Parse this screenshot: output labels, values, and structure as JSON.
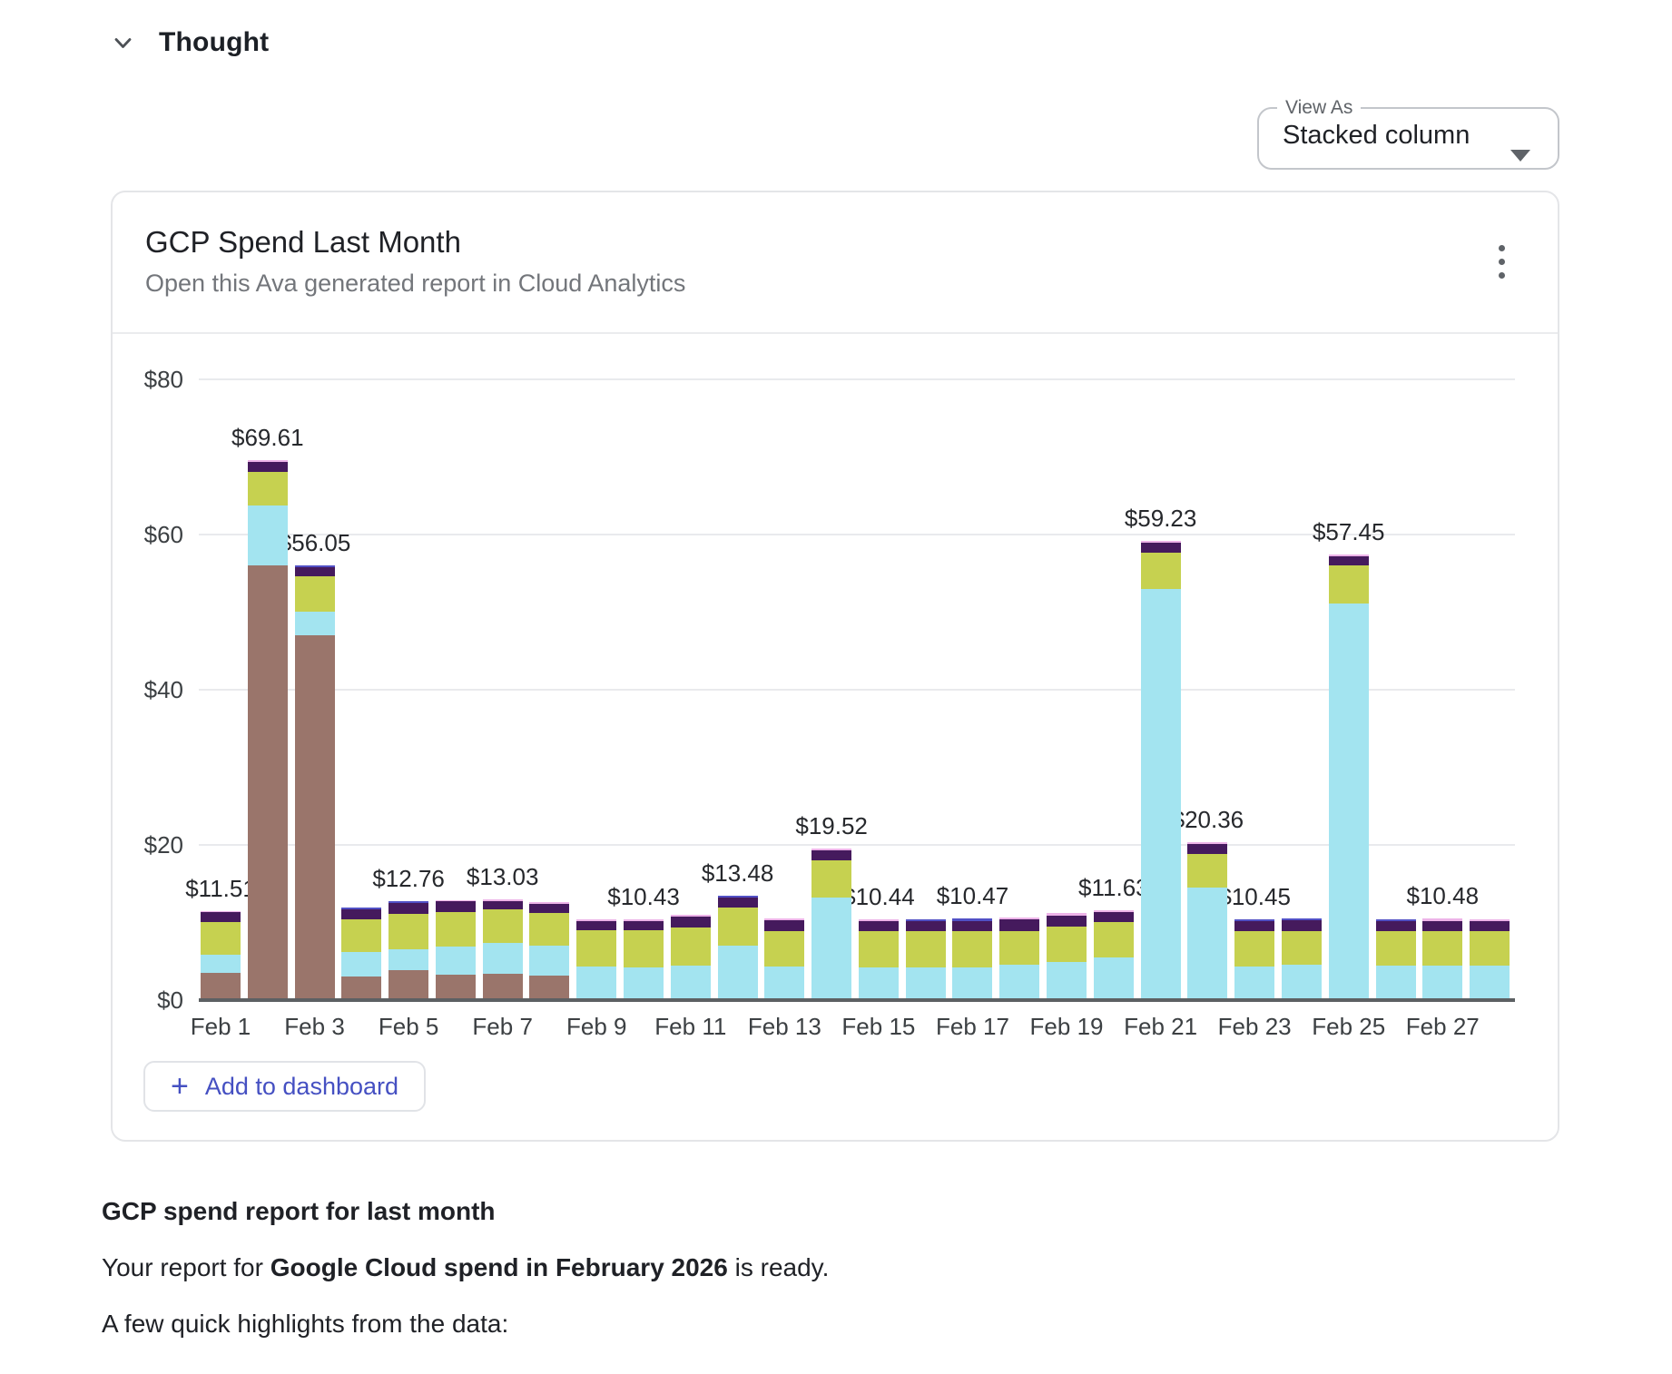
{
  "thought": {
    "label": "Thought"
  },
  "view_as": {
    "label": "View As",
    "value": "Stacked column"
  },
  "card": {
    "title": "GCP Spend Last Month",
    "subtitle": "Open this Ava generated report in Cloud Analytics",
    "add_button": "Add to dashboard"
  },
  "message": {
    "heading": "GCP spend report for last month",
    "line2_prefix": "Your report for ",
    "line2_bold": "Google Cloud spend in February 2026",
    "line2_suffix": " is ready.",
    "line3": "A few quick highlights from the data:"
  },
  "chart_data": {
    "type": "bar",
    "stacked": true,
    "x": [
      "Feb 1",
      "Feb 2",
      "Feb 3",
      "Feb 4",
      "Feb 5",
      "Feb 6",
      "Feb 7",
      "Feb 8",
      "Feb 9",
      "Feb 10",
      "Feb 11",
      "Feb 12",
      "Feb 13",
      "Feb 14",
      "Feb 15",
      "Feb 16",
      "Feb 17",
      "Feb 18",
      "Feb 19",
      "Feb 20",
      "Feb 21",
      "Feb 22",
      "Feb 23",
      "Feb 24",
      "Feb 25",
      "Feb 26",
      "Feb 27",
      "Feb 28"
    ],
    "x_tick_step": 2,
    "ylim": [
      0,
      80
    ],
    "grid": true,
    "legend": "none",
    "y_ticks": [
      {
        "value": 0,
        "label": "$0"
      },
      {
        "value": 20,
        "label": "$20"
      },
      {
        "value": 40,
        "label": "$40"
      },
      {
        "value": 60,
        "label": "$60"
      },
      {
        "value": 80,
        "label": "$80"
      }
    ],
    "series": [
      {
        "name": "brown",
        "color": "#9a756b",
        "values": [
          3.5,
          56.0,
          47.0,
          3.0,
          3.8,
          3.3,
          3.4,
          3.2,
          0,
          0,
          0,
          0,
          0,
          0,
          0,
          0,
          0,
          0,
          0,
          0,
          0,
          0,
          0,
          0,
          0,
          0,
          0,
          0
        ]
      },
      {
        "name": "cyan",
        "color": "#a3e4f0",
        "values": [
          2.4,
          7.7,
          3.1,
          3.2,
          2.8,
          3.6,
          4.0,
          3.8,
          4.3,
          4.2,
          4.5,
          7.0,
          4.3,
          13.2,
          4.2,
          4.2,
          4.2,
          4.5,
          4.9,
          5.5,
          53.0,
          14.5,
          4.3,
          4.6,
          51.1,
          4.5,
          4.5,
          4.4
        ]
      },
      {
        "name": "olive",
        "color": "#c6d150",
        "values": [
          4.2,
          4.4,
          4.5,
          4.2,
          4.5,
          4.5,
          4.3,
          4.2,
          4.7,
          4.8,
          4.9,
          4.9,
          4.6,
          4.8,
          4.7,
          4.7,
          4.7,
          4.4,
          4.6,
          4.6,
          4.7,
          4.3,
          4.6,
          4.3,
          4.9,
          4.4,
          4.4,
          4.5
        ]
      },
      {
        "name": "dark-purple",
        "color": "#451a5d",
        "values": [
          1.2,
          1.3,
          1.2,
          1.3,
          1.4,
          1.3,
          1.1,
          1.2,
          1.2,
          1.2,
          1.4,
          1.3,
          1.4,
          1.3,
          1.3,
          1.3,
          1.3,
          1.5,
          1.4,
          1.3,
          1.3,
          1.3,
          1.3,
          1.4,
          1.2,
          1.3,
          1.3,
          1.3
        ]
      },
      {
        "name": "indigo",
        "color": "#5150c5",
        "values": [
          0,
          0,
          0.25,
          0.2,
          0.26,
          0,
          0,
          0,
          0,
          0,
          0,
          0.28,
          0,
          0,
          0,
          0.25,
          0.27,
          0,
          0,
          0,
          0,
          0,
          0.25,
          0.2,
          0,
          0.2,
          0,
          0
        ]
      },
      {
        "name": "pink",
        "color": "#edb3e8",
        "values": [
          0.21,
          0.21,
          0,
          0,
          0,
          0.2,
          0.23,
          0.2,
          0.2,
          0.23,
          0.2,
          0,
          0.2,
          0.22,
          0.24,
          0,
          0,
          0.3,
          0.3,
          0.23,
          0.23,
          0.26,
          0,
          0,
          0.25,
          0,
          0.28,
          0.25
        ]
      }
    ],
    "value_labels": [
      "$11.51",
      "$69.61",
      "$56.05",
      null,
      "$12.76",
      null,
      "$13.03",
      null,
      null,
      "$10.43",
      null,
      "$13.48",
      null,
      "$19.52",
      "$10.44",
      null,
      "$10.47",
      null,
      null,
      "$11.63",
      "$59.23",
      "$20.36",
      "$10.45",
      null,
      "$57.45",
      null,
      "$10.48",
      null
    ]
  }
}
